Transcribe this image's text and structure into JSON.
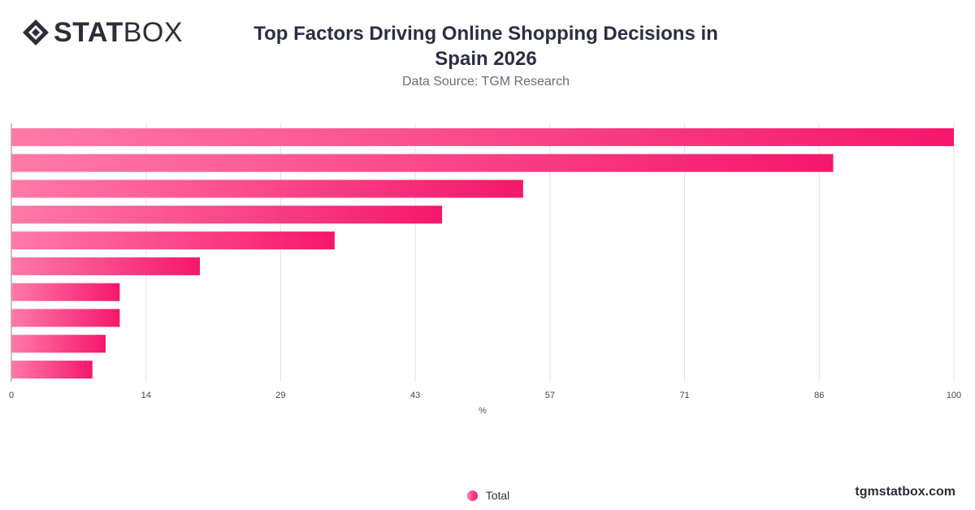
{
  "brand": {
    "logo_bold": "STAT",
    "logo_light": "BOX",
    "website": "tgmstatbox.com"
  },
  "header": {
    "title": "Top Factors Driving Online Shopping Decisions in Spain 2026",
    "subtitle": "Data Source: TGM Research"
  },
  "legend": {
    "label": "Total"
  },
  "colors": {
    "bar_start": "#ff7aa8",
    "bar_end": "#f5176b",
    "grid": "#e3e3e3"
  },
  "chart_data": {
    "type": "bar",
    "orientation": "horizontal",
    "title": "Top Factors Driving Online Shopping Decisions in Spain 2026",
    "xlabel": "%",
    "xlim": [
      0,
      100
    ],
    "xticks": [
      "0",
      "14",
      "29",
      "43",
      "57",
      "71",
      "86",
      "100"
    ],
    "grid": true,
    "legend_position": "bottom",
    "series": [
      {
        "name": "Total",
        "values": [
          100,
          87.2,
          54.3,
          45.7,
          34.3,
          20.0,
          11.5,
          11.5,
          10.0,
          8.6
        ]
      }
    ]
  }
}
